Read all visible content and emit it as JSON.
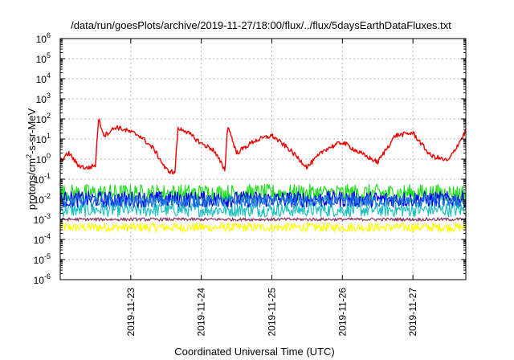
{
  "chart_data": {
    "type": "line",
    "title": "/data/run/goesPlots/archive/2019-11-27/18:00/flux/../flux/5daysEarthDataFluxes.txt",
    "xlabel": "Coordinated Universal Time (UTC)",
    "ylabel": {
      "base": "protons/cm",
      "sup": "2",
      "rest": "-s-sr-MeV"
    },
    "yscale": "log",
    "ylim": [
      1e-06,
      1000000.0
    ],
    "xlim": [
      "2019-11-22T00:00",
      "2019-11-27T18:00"
    ],
    "grid": true,
    "xticks": [
      {
        "x": "2019-11-23T00:00",
        "label": "2019-11-23"
      },
      {
        "x": "2019-11-24T00:00",
        "label": "2019-11-24"
      },
      {
        "x": "2019-11-25T00:00",
        "label": "2019-11-25"
      },
      {
        "x": "2019-11-26T00:00",
        "label": "2019-11-26"
      },
      {
        "x": "2019-11-27T00:00",
        "label": "2019-11-27"
      }
    ],
    "yticks": [
      {
        "y": 1e-06,
        "base": "10",
        "exp": "-6"
      },
      {
        "y": 1e-05,
        "base": "10",
        "exp": "-5"
      },
      {
        "y": 0.0001,
        "base": "10",
        "exp": "-4"
      },
      {
        "y": 0.001,
        "base": "10",
        "exp": "-3"
      },
      {
        "y": 0.01,
        "base": "10",
        "exp": "-2"
      },
      {
        "y": 0.1,
        "base": "10",
        "exp": "-1"
      },
      {
        "y": 1,
        "base": "10",
        "exp": "0"
      },
      {
        "y": 10,
        "base": "10",
        "exp": "1"
      },
      {
        "y": 100,
        "base": "10",
        "exp": "2"
      },
      {
        "y": 1000,
        "base": "10",
        "exp": "3"
      },
      {
        "y": 10000,
        "base": "10",
        "exp": "4"
      },
      {
        "y": 100000,
        "base": "10",
        "exp": "5"
      },
      {
        "y": 1000000,
        "base": "10",
        "exp": "6"
      }
    ],
    "series": [
      {
        "color": "#ffff00",
        "noise": 0.22,
        "x": [
          "2019-11-22T00:00",
          "2019-11-23T00:00",
          "2019-11-24T00:00",
          "2019-11-25T00:00",
          "2019-11-26T00:00",
          "2019-11-27T00:00",
          "2019-11-27T18:00"
        ],
        "y": [
          0.0004,
          0.0004,
          0.0004,
          0.0004,
          0.0004,
          0.0004,
          0.0004
        ]
      },
      {
        "color": "#20c0c0",
        "noise": 0.35,
        "x": [
          "2019-11-22T00:00",
          "2019-11-23T00:00",
          "2019-11-24T00:00",
          "2019-11-25T00:00",
          "2019-11-26T00:00",
          "2019-11-27T00:00",
          "2019-11-27T18:00"
        ],
        "y": [
          0.003,
          0.003,
          0.003,
          0.003,
          0.003,
          0.003,
          0.003
        ]
      },
      {
        "color": "#22dd22",
        "noise": 0.45,
        "x": [
          "2019-11-22T00:00",
          "2019-11-23T00:00",
          "2019-11-24T00:00",
          "2019-11-25T00:00",
          "2019-11-26T00:00",
          "2019-11-27T00:00",
          "2019-11-27T18:00"
        ],
        "y": [
          0.02,
          0.02,
          0.02,
          0.02,
          0.02,
          0.02,
          0.02
        ]
      },
      {
        "color": "#0000ee",
        "noise": 0.4,
        "x": [
          "2019-11-22T00:00",
          "2019-11-23T00:00",
          "2019-11-24T00:00",
          "2019-11-25T00:00",
          "2019-11-26T00:00",
          "2019-11-27T00:00",
          "2019-11-27T18:00"
        ],
        "y": [
          0.01,
          0.01,
          0.01,
          0.01,
          0.01,
          0.01,
          0.01
        ]
      },
      {
        "color": "#1a78d8",
        "noise": 0.3,
        "x": [
          "2019-11-22T00:00",
          "2019-11-23T00:00",
          "2019-11-24T00:00",
          "2019-11-25T00:00",
          "2019-11-26T00:00",
          "2019-11-27T00:00",
          "2019-11-27T18:00"
        ],
        "y": [
          0.008,
          0.008,
          0.008,
          0.008,
          0.008,
          0.008,
          0.008
        ]
      },
      {
        "color": "#8b3a62",
        "noise": 0.08,
        "x": [
          "2019-11-22T00:00",
          "2019-11-23T00:00",
          "2019-11-24T00:00",
          "2019-11-25T00:00",
          "2019-11-26T00:00",
          "2019-11-27T00:00",
          "2019-11-27T18:00"
        ],
        "y": [
          0.001,
          0.001,
          0.001,
          0.001,
          0.001,
          0.001,
          0.001
        ]
      },
      {
        "color": "#ee0000",
        "noise": 0.12,
        "x": [
          "2019-11-22T00:00",
          "2019-11-22T03:00",
          "2019-11-22T06:00",
          "2019-11-22T09:00",
          "2019-11-22T12:00",
          "2019-11-22T13:00",
          "2019-11-22T15:00",
          "2019-11-22T19:00",
          "2019-11-22T23:00",
          "2019-11-23T03:00",
          "2019-11-23T08:00",
          "2019-11-23T12:00",
          "2019-11-23T15:00",
          "2019-11-23T16:00",
          "2019-11-23T18:00",
          "2019-11-24T00:00",
          "2019-11-24T04:00",
          "2019-11-24T08:00",
          "2019-11-24T09:00",
          "2019-11-24T12:00",
          "2019-11-24T18:00",
          "2019-11-25T00:00",
          "2019-11-25T06:00",
          "2019-11-25T12:00",
          "2019-11-25T18:00",
          "2019-11-26T00:00",
          "2019-11-26T06:00",
          "2019-11-26T12:00",
          "2019-11-26T18:00",
          "2019-11-27T00:00",
          "2019-11-27T06:00",
          "2019-11-27T12:00",
          "2019-11-27T18:00"
        ],
        "y": [
          0.8,
          2,
          0.5,
          0.35,
          0.5,
          100,
          15,
          40,
          25,
          15,
          3,
          0.3,
          0.2,
          30,
          30,
          6,
          3,
          0.3,
          50,
          2,
          8,
          15,
          3,
          0.4,
          3,
          7,
          2,
          0.7,
          15,
          20,
          1.5,
          0.8,
          25
        ]
      }
    ]
  }
}
